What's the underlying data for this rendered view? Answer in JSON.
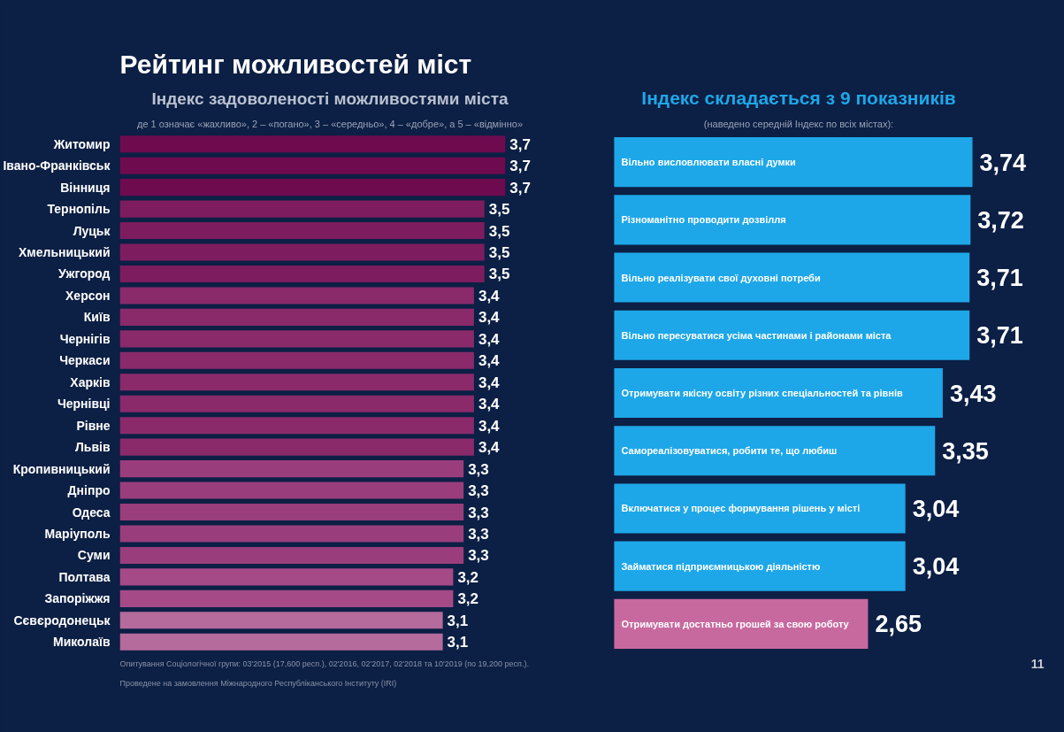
{
  "chart_data": [
    {
      "type": "bar",
      "orientation": "horizontal",
      "title": "Індекс задоволеності можливостями міста",
      "subtitle": "де 1 означає «жахливо», 2 – «погано», 3 – «середньо», 4 – «добре», а 5 – «відмінно»",
      "categories": [
        "Житомир",
        "Івано-Франківськ",
        "Вінниця",
        "Тернопіль",
        "Луцьк",
        "Хмельницький",
        "Ужгород",
        "Херсон",
        "Київ",
        "Чернігів",
        "Черкаси",
        "Харків",
        "Чернівці",
        "Рівне",
        "Львів",
        "Кропивницький",
        "Дніпро",
        "Одеса",
        "Маріуполь",
        "Суми",
        "Полтава",
        "Запоріжжя",
        "Сєвєродонецьк",
        "Миколаїв"
      ],
      "values": [
        3.7,
        3.7,
        3.7,
        3.5,
        3.5,
        3.5,
        3.5,
        3.4,
        3.4,
        3.4,
        3.4,
        3.4,
        3.4,
        3.4,
        3.4,
        3.3,
        3.3,
        3.3,
        3.3,
        3.3,
        3.2,
        3.2,
        3.1,
        3.1
      ],
      "value_labels": [
        "3,7",
        "3,7",
        "3,7",
        "3,5",
        "3,5",
        "3,5",
        "3,5",
        "3,4",
        "3,4",
        "3,4",
        "3,4",
        "3,4",
        "3,4",
        "3,4",
        "3,4",
        "3,3",
        "3,3",
        "3,3",
        "3,3",
        "3,3",
        "3,2",
        "3,2",
        "3,1",
        "3,1"
      ],
      "colors": [
        "#6e0b4f",
        "#6e0b4f",
        "#6e0b4f",
        "#7d1c5e",
        "#7d1c5e",
        "#7d1c5e",
        "#7d1c5e",
        "#8a2a6b",
        "#8a2a6b",
        "#8a2a6b",
        "#8a2a6b",
        "#8a2a6b",
        "#8a2a6b",
        "#8a2a6b",
        "#8a2a6b",
        "#9a3d7c",
        "#9a3d7c",
        "#9a3d7c",
        "#9a3d7c",
        "#9a3d7c",
        "#a54a87",
        "#a54a87",
        "#b56b9c",
        "#b56b9c"
      ],
      "annotations": [
        "Рейтинг можливостей міст",
        "Опитування Соціологічної групи: 03'2015 (17,600 респ.), 02'2016, 02'2017, 02'2018 та 10'2019 (по 19,200 респ.).",
        "Проведене на замовлення Міжнародного Республіканського Інституту (IRI)"
      ]
    },
    {
      "type": "bar",
      "orientation": "horizontal",
      "title": "Індекс складається з 9 показників",
      "subtitle": "(наведено середній Індекс по всіх містах):",
      "categories": [
        "Вільно висловлювати власні думки",
        "Різноманітно проводити дозвілля",
        "Вільно реалізувати свої духовні потреби",
        "Вільно пересуватися усіма частинами і районами міста",
        "Отримувати якісну освіту різних спеціальностей та рівнів",
        "Самореалізовуватися, робити те, що любиш",
        "Включатися у процес формування рішень у місті",
        "Займатися підприємницькою діяльністю",
        "Отримувати достатньо грошей за свою роботу"
      ],
      "values": [
        3.74,
        3.72,
        3.71,
        3.71,
        3.43,
        3.35,
        3.04,
        3.04,
        2.65
      ],
      "value_labels": [
        "3,74",
        "3,72",
        "3,71",
        "3,71",
        "3,43",
        "3,35",
        "3,04",
        "3,04",
        "2,65"
      ],
      "colors": [
        "#1ea7e8",
        "#1ea7e8",
        "#1ea7e8",
        "#1ea7e8",
        "#1ea7e8",
        "#1ea7e8",
        "#1ea7e8",
        "#1ea7e8",
        "#c7699f"
      ],
      "annotations": [
        "11"
      ]
    }
  ]
}
